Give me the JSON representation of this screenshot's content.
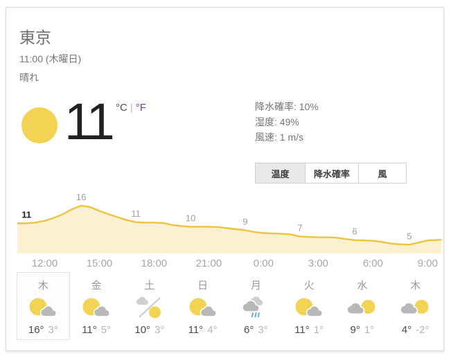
{
  "header": {
    "city": "東京",
    "datetime": "11:00 (木曜日)",
    "condition": "晴れ"
  },
  "now": {
    "temperature": "11",
    "unit_celsius": "°C",
    "unit_separator": "|",
    "unit_fahrenheit": "°F",
    "icon": "sunny"
  },
  "stats": [
    {
      "name": "precipitation",
      "label": "降水確率",
      "value": "10%"
    },
    {
      "name": "humidity",
      "label": "湿度",
      "value": "49%"
    },
    {
      "name": "wind",
      "label": "風速",
      "value": "1 m/s"
    }
  ],
  "tabs": [
    {
      "name": "temperature",
      "label": "温度",
      "active": true
    },
    {
      "name": "precipitation",
      "label": "降水確率",
      "active": false
    },
    {
      "name": "wind",
      "label": "風",
      "active": false
    }
  ],
  "chart_data": {
    "type": "area",
    "series": [
      {
        "name": "温度",
        "unit": "°C",
        "points": [
          [
            0,
            11
          ],
          [
            0.5,
            11
          ],
          [
            1,
            11.2
          ],
          [
            1.5,
            11.7
          ],
          [
            2,
            12.5
          ],
          [
            2.5,
            13.6
          ],
          [
            3,
            15
          ],
          [
            3.5,
            16
          ],
          [
            4,
            15.6
          ],
          [
            4.5,
            14.5
          ],
          [
            5,
            13.6
          ],
          [
            5.5,
            12.7
          ],
          [
            6,
            11.9
          ],
          [
            6.5,
            11.3
          ],
          [
            7,
            11.2
          ],
          [
            7.5,
            11.2
          ],
          [
            8,
            11.1
          ],
          [
            8.5,
            10.5
          ],
          [
            9,
            10.2
          ],
          [
            9.5,
            10
          ],
          [
            10,
            10
          ],
          [
            10.5,
            10
          ],
          [
            11,
            9.9
          ],
          [
            11.5,
            9.6
          ],
          [
            12,
            9.3
          ],
          [
            12.5,
            9
          ],
          [
            13,
            8.5
          ],
          [
            13.5,
            8.2
          ],
          [
            14,
            8.1
          ],
          [
            14.5,
            8
          ],
          [
            15,
            7.8
          ],
          [
            15.5,
            7.2
          ],
          [
            16,
            7.1
          ],
          [
            16.5,
            7
          ],
          [
            17,
            7
          ],
          [
            17.5,
            6.9
          ],
          [
            18,
            6.5
          ],
          [
            18.5,
            6.2
          ],
          [
            19,
            6.1
          ],
          [
            19.5,
            6
          ],
          [
            20,
            5.7
          ],
          [
            20.5,
            5.2
          ],
          [
            21,
            5
          ],
          [
            21.5,
            4.9
          ],
          [
            22,
            5.5
          ],
          [
            22.5,
            6.1
          ],
          [
            23.25,
            6.3
          ]
        ]
      }
    ],
    "point_labels": [
      {
        "t": 0.5,
        "v": 11,
        "label": "11",
        "emphasis": true
      },
      {
        "t": 3.5,
        "v": 16,
        "label": "16"
      },
      {
        "t": 6.5,
        "v": 11.3,
        "label": "11"
      },
      {
        "t": 9.5,
        "v": 10,
        "label": "10"
      },
      {
        "t": 12.5,
        "v": 9,
        "label": "9"
      },
      {
        "t": 15.5,
        "v": 7.2,
        "label": "7"
      },
      {
        "t": 18.5,
        "v": 6.2,
        "label": "6"
      },
      {
        "t": 21.5,
        "v": 4.9,
        "label": "5"
      }
    ],
    "x_ticks": [
      {
        "t": 1.5,
        "label": "12:00"
      },
      {
        "t": 4.5,
        "label": "15:00"
      },
      {
        "t": 7.5,
        "label": "18:00"
      },
      {
        "t": 10.5,
        "label": "21:00"
      },
      {
        "t": 13.5,
        "label": "0:00"
      },
      {
        "t": 16.5,
        "label": "3:00"
      },
      {
        "t": 19.5,
        "label": "6:00"
      },
      {
        "t": 22.5,
        "label": "9:00"
      }
    ],
    "x_range": [
      0,
      23.25
    ],
    "ylim": [
      2.4,
      16
    ],
    "grid": false,
    "legend": false
  },
  "days": [
    {
      "day": "木",
      "icon": "partly-sunny",
      "high": "16°",
      "low": "3°",
      "selected": true
    },
    {
      "day": "金",
      "icon": "partly-sunny",
      "high": "11°",
      "low": "5°",
      "selected": false
    },
    {
      "day": "土",
      "icon": "cloudy-then-sunny",
      "high": "10°",
      "low": "3°",
      "selected": false
    },
    {
      "day": "日",
      "icon": "partly-sunny",
      "high": "11°",
      "low": "4°",
      "selected": false
    },
    {
      "day": "月",
      "icon": "rain",
      "high": "6°",
      "low": "3°",
      "selected": false
    },
    {
      "day": "火",
      "icon": "partly-sunny",
      "high": "11°",
      "low": "1°",
      "selected": false
    },
    {
      "day": "水",
      "icon": "mostly-cloudy",
      "high": "9°",
      "low": "1°",
      "selected": false
    },
    {
      "day": "木",
      "icon": "mostly-cloudy",
      "high": "4°",
      "low": "-2°",
      "selected": false
    }
  ],
  "colors": {
    "line": "#eec33f",
    "fill": "rgba(238,195,63,0.24)",
    "sun": "#f3d353",
    "cloud": "#b8b8b8",
    "cloud_light": "#cfcfcf",
    "rain": "#60a9e8",
    "unit_link": "#6b3fa0"
  }
}
